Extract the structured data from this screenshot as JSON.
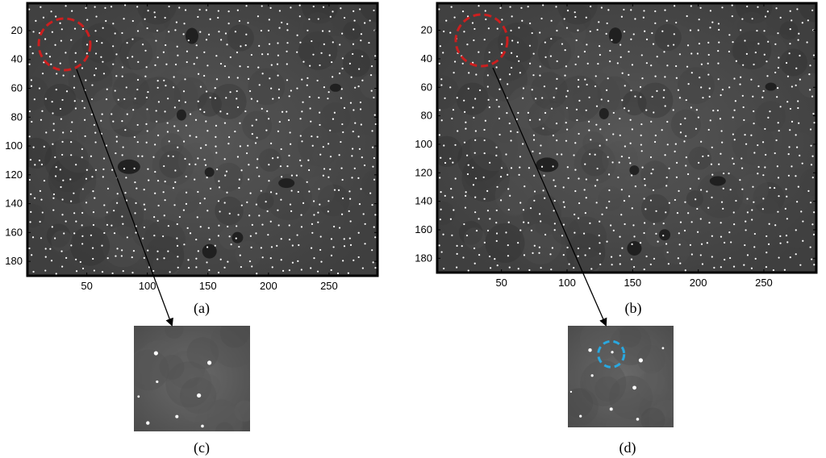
{
  "panels": [
    {
      "id": "a",
      "caption": "(a)",
      "y_ticks": [
        "20",
        "40",
        "60",
        "80",
        "100",
        "120",
        "140",
        "160",
        "180"
      ],
      "x_ticks": [
        "50",
        "100",
        "150",
        "200",
        "250"
      ]
    },
    {
      "id": "b",
      "caption": "(b)",
      "y_ticks": [
        "20",
        "40",
        "60",
        "80",
        "100",
        "120",
        "140",
        "160",
        "180"
      ],
      "x_ticks": [
        "50",
        "100",
        "150",
        "200",
        "250"
      ]
    }
  ],
  "zooms": [
    {
      "id": "c",
      "caption": "(c)"
    },
    {
      "id": "d",
      "caption": "(d)"
    }
  ],
  "colors": {
    "background_image": "#4a4a4a",
    "dark_blob": "#1a1a1a",
    "dots": "#ffffff",
    "roi_circle": "#cc1f1f",
    "highlight_circle": "#29a8e0",
    "frame": "#000000"
  },
  "x_range": [
    1,
    290
  ],
  "y_range": [
    1,
    190
  ]
}
